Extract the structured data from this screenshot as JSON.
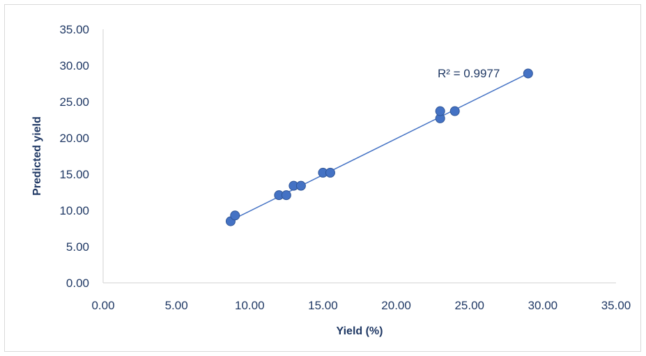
{
  "chart_data": {
    "type": "scatter",
    "title": "",
    "xlabel": "Yield (%)",
    "ylabel": "Predicted yield",
    "xlim": [
      0,
      35
    ],
    "ylim": [
      0,
      35
    ],
    "x_ticks": [
      "0.00",
      "5.00",
      "10.00",
      "15.00",
      "20.00",
      "25.00",
      "30.00",
      "35.00"
    ],
    "y_ticks": [
      "0.00",
      "5.00",
      "10.00",
      "15.00",
      "20.00",
      "25.00",
      "30.00",
      "35.00"
    ],
    "grid": false,
    "legend": "none",
    "series": [
      {
        "x": [
          8.7,
          9.0,
          12.0,
          12.5,
          13.0,
          13.5,
          15.0,
          15.5,
          23.0,
          23.0,
          24.0,
          29.0
        ],
        "y": [
          8.5,
          9.3,
          12.1,
          12.1,
          13.4,
          13.4,
          15.2,
          15.2,
          22.7,
          23.7,
          23.7,
          28.9
        ]
      }
    ],
    "trendline": {
      "type": "linear",
      "x_range": [
        8.7,
        29.0
      ],
      "y_range": [
        8.6,
        28.9
      ]
    },
    "annotation": "R² = 0.9977",
    "colors": {
      "marker": "#4472c4",
      "marker_edge": "#2f5597",
      "line": "#4472c4",
      "axis": "#d9d9d9",
      "text": "#1f3864"
    }
  }
}
